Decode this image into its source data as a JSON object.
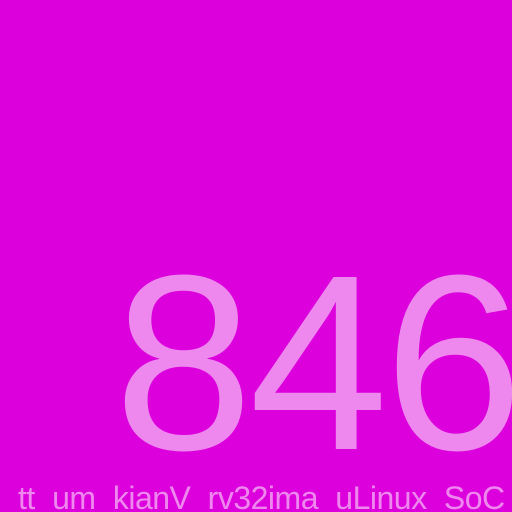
{
  "tile": {
    "background_color": "#dc00dc",
    "text_color": "#ee88ee",
    "number": "846",
    "caption": "tt_um_kianV_rv32ima_uLinux_SoC"
  }
}
